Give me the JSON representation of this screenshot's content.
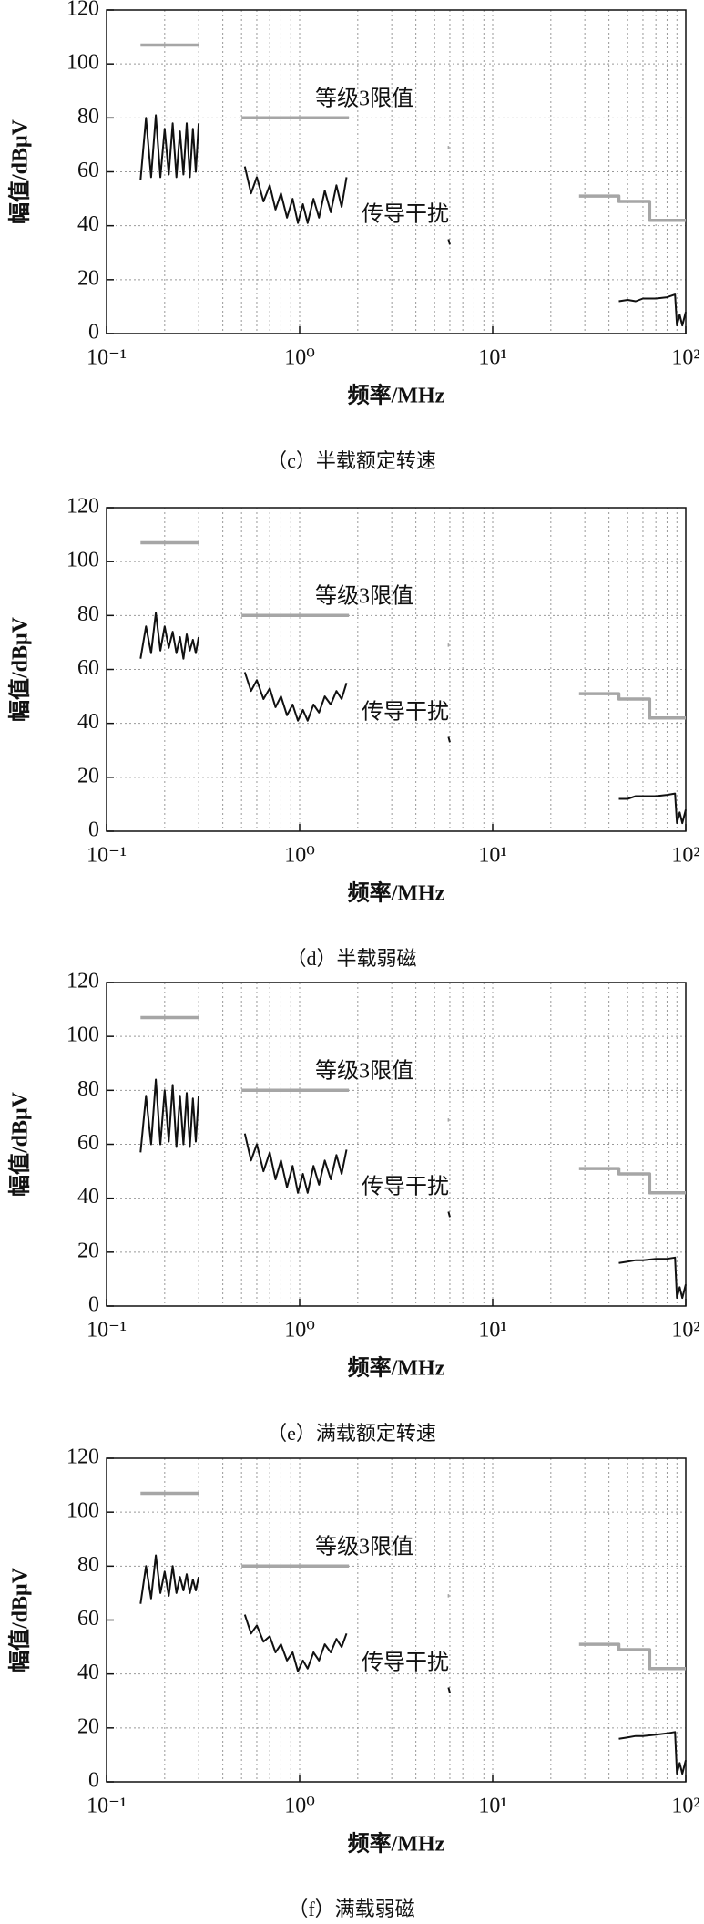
{
  "chart_data": [
    {
      "type": "line",
      "caption": "（c）半载额定转速",
      "xlabel": "频率/MHz",
      "ylabel": "幅值/dBμV",
      "xscale": "log",
      "grid": true,
      "annotations": [
        "等级3限值",
        "传导干扰"
      ],
      "xlim": [
        0.1,
        100
      ],
      "xticks": [
        {
          "value": 0.1,
          "label": "10⁻¹"
        },
        {
          "value": 1,
          "label": "10⁰"
        },
        {
          "value": 10,
          "label": "10¹"
        },
        {
          "value": 100,
          "label": "10²"
        }
      ],
      "ylim": [
        0,
        120
      ],
      "yticks": [
        0,
        20,
        40,
        60,
        80,
        100,
        120
      ],
      "series": [
        {
          "color": "#a6a6a6",
          "x": [
            0.15,
            0.3,
            0.4,
            0.5,
            1.8,
            3,
            5.85,
            5.95,
            10,
            28,
            45,
            45,
            65,
            65,
            100
          ],
          "values": [
            107,
            107,
            null,
            80,
            80,
            null,
            69,
            69,
            null,
            51,
            51,
            49,
            49,
            42,
            42
          ]
        },
        {
          "color": "#111111",
          "x": [
            0.15,
            0.16,
            0.17,
            0.18,
            0.19,
            0.2,
            0.21,
            0.22,
            0.23,
            0.24,
            0.25,
            0.26,
            0.27,
            0.28,
            0.29,
            0.3,
            0.4,
            0.52,
            0.56,
            0.6,
            0.65,
            0.7,
            0.75,
            0.8,
            0.86,
            0.92,
            0.98,
            1.04,
            1.1,
            1.18,
            1.26,
            1.35,
            1.45,
            1.55,
            1.65,
            1.75,
            3,
            5.9,
            6.0,
            20,
            45,
            50,
            55,
            60,
            70,
            80,
            88,
            90,
            93,
            96,
            100
          ],
          "values": [
            57,
            80,
            58,
            81,
            58,
            76,
            59,
            78,
            58,
            75,
            59,
            78,
            58,
            76,
            60,
            78,
            null,
            62,
            52,
            58,
            49,
            55,
            46,
            52,
            43,
            50,
            41,
            48,
            41,
            50,
            43,
            53,
            45,
            55,
            47,
            58,
            null,
            35,
            33,
            null,
            12,
            12.5,
            12,
            13,
            13,
            13.5,
            14.5,
            3,
            7,
            3,
            8
          ]
        }
      ]
    },
    {
      "type": "line",
      "caption": "（d）半载弱磁",
      "xlabel": "频率/MHz",
      "ylabel": "幅值/dBμV",
      "xscale": "log",
      "grid": true,
      "annotations": [
        "等级3限值",
        "传导干扰"
      ],
      "xlim": [
        0.1,
        100
      ],
      "xticks": [
        {
          "value": 0.1,
          "label": "10⁻¹"
        },
        {
          "value": 1,
          "label": "10⁰"
        },
        {
          "value": 10,
          "label": "10¹"
        },
        {
          "value": 100,
          "label": "10²"
        }
      ],
      "ylim": [
        0,
        120
      ],
      "yticks": [
        0,
        20,
        40,
        60,
        80,
        100,
        120
      ],
      "series": [
        {
          "color": "#a6a6a6",
          "x": [
            0.15,
            0.3,
            0.4,
            0.5,
            1.8,
            3,
            5.85,
            5.95,
            10,
            28,
            45,
            45,
            65,
            65,
            100
          ],
          "values": [
            107,
            107,
            null,
            80,
            80,
            null,
            69,
            69,
            null,
            51,
            51,
            49,
            49,
            42,
            42
          ]
        },
        {
          "color": "#111111",
          "x": [
            0.15,
            0.16,
            0.17,
            0.18,
            0.19,
            0.2,
            0.21,
            0.22,
            0.23,
            0.24,
            0.25,
            0.26,
            0.27,
            0.28,
            0.29,
            0.3,
            0.4,
            0.52,
            0.56,
            0.6,
            0.65,
            0.7,
            0.75,
            0.8,
            0.86,
            0.92,
            0.98,
            1.04,
            1.1,
            1.18,
            1.26,
            1.35,
            1.45,
            1.55,
            1.65,
            1.75,
            3,
            5.9,
            6.0,
            20,
            45,
            50,
            55,
            60,
            70,
            80,
            88,
            90,
            93,
            96,
            100
          ],
          "values": [
            64,
            76,
            66,
            81,
            67,
            76,
            68,
            74,
            66,
            72,
            64,
            73,
            67,
            71,
            66,
            72,
            null,
            59,
            52,
            56,
            49,
            53,
            46,
            50,
            43,
            47,
            41,
            45,
            41,
            47,
            44,
            50,
            47,
            52,
            49,
            55,
            null,
            35,
            33,
            null,
            12,
            12,
            13,
            13,
            13,
            13.5,
            14,
            3,
            7,
            3,
            8
          ]
        }
      ]
    },
    {
      "type": "line",
      "caption": "（e）满载额定转速",
      "xlabel": "频率/MHz",
      "ylabel": "幅值/dBμV",
      "xscale": "log",
      "grid": true,
      "annotations": [
        "等级3限值",
        "传导干扰"
      ],
      "xlim": [
        0.1,
        100
      ],
      "xticks": [
        {
          "value": 0.1,
          "label": "10⁻¹"
        },
        {
          "value": 1,
          "label": "10⁰"
        },
        {
          "value": 10,
          "label": "10¹"
        },
        {
          "value": 100,
          "label": "10²"
        }
      ],
      "ylim": [
        0,
        120
      ],
      "yticks": [
        0,
        20,
        40,
        60,
        80,
        100,
        120
      ],
      "series": [
        {
          "color": "#a6a6a6",
          "x": [
            0.15,
            0.3,
            0.4,
            0.5,
            1.8,
            3,
            5.85,
            5.95,
            10,
            28,
            45,
            45,
            65,
            65,
            100
          ],
          "values": [
            107,
            107,
            null,
            80,
            80,
            null,
            69,
            69,
            null,
            51,
            51,
            49,
            49,
            42,
            42
          ]
        },
        {
          "color": "#111111",
          "x": [
            0.15,
            0.16,
            0.17,
            0.18,
            0.19,
            0.2,
            0.21,
            0.22,
            0.23,
            0.24,
            0.25,
            0.26,
            0.27,
            0.28,
            0.29,
            0.3,
            0.4,
            0.52,
            0.56,
            0.6,
            0.65,
            0.7,
            0.75,
            0.8,
            0.86,
            0.92,
            0.98,
            1.04,
            1.1,
            1.18,
            1.26,
            1.35,
            1.45,
            1.55,
            1.65,
            1.75,
            3,
            5.9,
            6.0,
            20,
            45,
            50,
            55,
            60,
            70,
            80,
            88,
            90,
            93,
            96,
            100
          ],
          "values": [
            57,
            78,
            60,
            84,
            60,
            80,
            61,
            82,
            59,
            78,
            60,
            79,
            59,
            77,
            61,
            78,
            null,
            64,
            54,
            60,
            50,
            57,
            47,
            54,
            44,
            52,
            42,
            49,
            42,
            52,
            45,
            54,
            47,
            56,
            49,
            58,
            null,
            35,
            33,
            null,
            16,
            16.5,
            17,
            17,
            17.5,
            17.5,
            18,
            3,
            7,
            3,
            8
          ]
        }
      ]
    },
    {
      "type": "line",
      "caption": "（f）满载弱磁",
      "xlabel": "频率/MHz",
      "ylabel": "幅值/dBμV",
      "xscale": "log",
      "grid": true,
      "annotations": [
        "等级3限值",
        "传导干扰"
      ],
      "xlim": [
        0.1,
        100
      ],
      "xticks": [
        {
          "value": 0.1,
          "label": "10⁻¹"
        },
        {
          "value": 1,
          "label": "10⁰"
        },
        {
          "value": 10,
          "label": "10¹"
        },
        {
          "value": 100,
          "label": "10²"
        }
      ],
      "ylim": [
        0,
        120
      ],
      "yticks": [
        0,
        20,
        40,
        60,
        80,
        100,
        120
      ],
      "series": [
        {
          "color": "#a6a6a6",
          "x": [
            0.15,
            0.3,
            0.4,
            0.5,
            1.8,
            3,
            5.85,
            5.95,
            10,
            28,
            45,
            45,
            65,
            65,
            100
          ],
          "values": [
            107,
            107,
            null,
            80,
            80,
            null,
            69,
            69,
            null,
            51,
            51,
            49,
            49,
            42,
            42
          ]
        },
        {
          "color": "#111111",
          "x": [
            0.15,
            0.16,
            0.17,
            0.18,
            0.19,
            0.2,
            0.21,
            0.22,
            0.23,
            0.24,
            0.25,
            0.26,
            0.27,
            0.28,
            0.29,
            0.3,
            0.4,
            0.52,
            0.56,
            0.6,
            0.65,
            0.7,
            0.75,
            0.8,
            0.86,
            0.92,
            0.98,
            1.04,
            1.1,
            1.18,
            1.26,
            1.35,
            1.45,
            1.55,
            1.65,
            1.75,
            3,
            5.9,
            6.0,
            20,
            45,
            50,
            55,
            60,
            70,
            80,
            88,
            90,
            93,
            96,
            100
          ],
          "values": [
            66,
            80,
            68,
            84,
            70,
            78,
            69,
            80,
            70,
            76,
            71,
            77,
            70,
            75,
            71,
            76,
            null,
            62,
            55,
            58,
            52,
            54,
            48,
            51,
            45,
            48,
            41,
            45,
            42,
            48,
            45,
            51,
            48,
            53,
            50,
            55,
            null,
            35,
            33,
            null,
            16,
            16.5,
            17,
            17,
            17.5,
            18,
            18.5,
            3,
            7,
            3,
            8
          ]
        }
      ]
    }
  ]
}
